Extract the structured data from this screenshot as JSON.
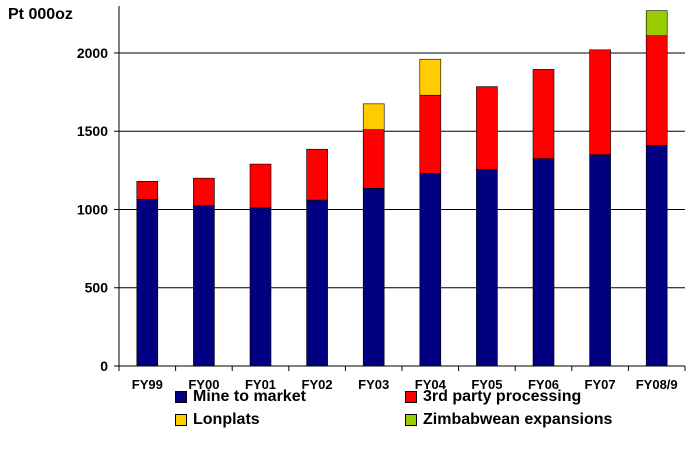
{
  "unit_label": "Pt 000oz",
  "chart_data": {
    "type": "bar",
    "stacked": true,
    "categories": [
      "FY99",
      "FY00",
      "FY01",
      "FY02",
      "FY03",
      "FY04",
      "FY05",
      "FY06",
      "FY07",
      "FY08/9"
    ],
    "series": [
      {
        "name": "Mine to market",
        "color": "#000080",
        "values": [
          1065,
          1025,
          1010,
          1060,
          1135,
          1230,
          1255,
          1325,
          1350,
          1410
        ]
      },
      {
        "name": "3rd party processing",
        "color": "#ff0000",
        "values": [
          115,
          175,
          280,
          325,
          375,
          500,
          530,
          570,
          670,
          700
        ]
      },
      {
        "name": "Lonplats",
        "color": "#ffcc00",
        "values": [
          0,
          0,
          0,
          0,
          165,
          230,
          0,
          0,
          0,
          0
        ]
      },
      {
        "name": "Zimbabwean expansions",
        "color": "#99cc00",
        "values": [
          0,
          0,
          0,
          0,
          0,
          0,
          0,
          0,
          0,
          160
        ]
      }
    ],
    "yticks": [
      0,
      500,
      1000,
      1500,
      2000
    ],
    "ylim": [
      0,
      2300
    ],
    "grid": true,
    "legend_position": "bottom"
  }
}
